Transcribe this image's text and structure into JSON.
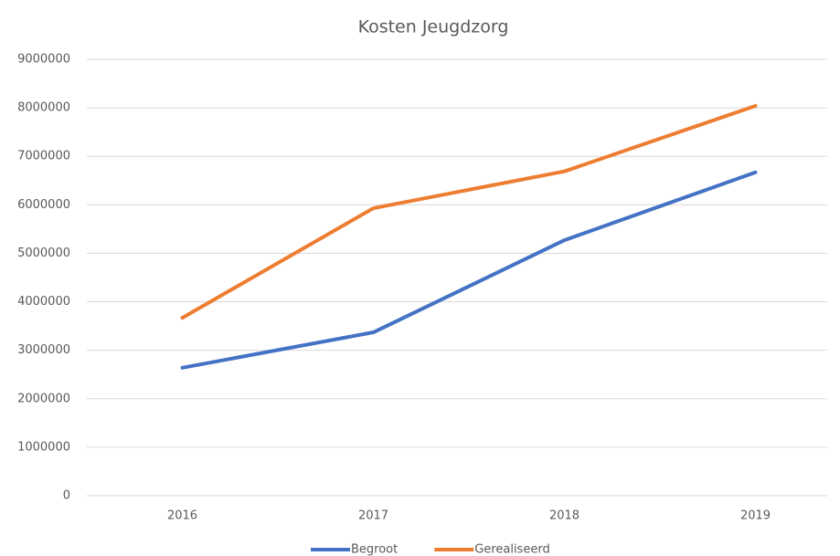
{
  "chart_data": {
    "type": "line",
    "title": "Kosten Jeugdzorg",
    "categories": [
      "2016",
      "2017",
      "2018",
      "2019"
    ],
    "series": [
      {
        "name": "Begroot",
        "color": "#4472c4",
        "values": [
          2640000,
          3370000,
          5270000,
          6670000
        ]
      },
      {
        "name": "Gerealiseerd",
        "color": "#ed7d31",
        "values": [
          3670000,
          5930000,
          6690000,
          8040000
        ]
      }
    ],
    "ylim": [
      0,
      9000000
    ],
    "yticks": [
      0,
      1000000,
      2000000,
      3000000,
      4000000,
      5000000,
      6000000,
      7000000,
      8000000,
      9000000
    ],
    "grid": true,
    "legend": "bottom"
  }
}
